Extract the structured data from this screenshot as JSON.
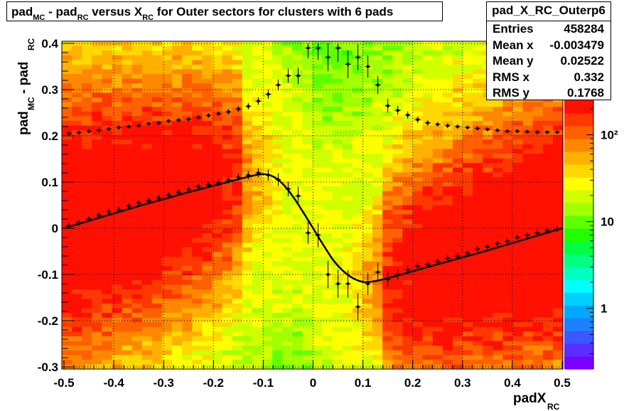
{
  "title": {
    "parts": [
      {
        "text": "pad",
        "sub": "MC"
      },
      {
        "text": " - pad",
        "sub": "RC"
      },
      {
        "text": " versus X",
        "sub": "RC"
      },
      {
        "text": " for Outer sectors for clusters with 6 pads",
        "sub": ""
      }
    ]
  },
  "stats": {
    "name": "pad_X_RC_Outerp6",
    "rows": [
      {
        "label": "Entries",
        "value": "458284"
      },
      {
        "label": "Mean x",
        "value": "-0.003479"
      },
      {
        "label": "Mean y",
        "value": "0.02522"
      },
      {
        "label": "RMS x",
        "value": "0.332"
      },
      {
        "label": "RMS y",
        "value": "0.1768"
      }
    ]
  },
  "chart_data": {
    "type": "heatmap",
    "title": "pad_MC - pad_RC versus X_RC for Outer sectors for clusters with 6 pads",
    "xlabel": "padX",
    "xlabel_sub": "RC",
    "ylabel": "pad",
    "ylabel_sub1": "MC",
    "ylabel_mid": " - pad",
    "ylabel_sub2": "RC",
    "xlim": [
      -0.5,
      0.5
    ],
    "ylim": [
      -0.3,
      0.4
    ],
    "x_ticks": [
      -0.5,
      -0.4,
      -0.3,
      -0.2,
      -0.1,
      0,
      0.1,
      0.2,
      0.3,
      0.4,
      0.5
    ],
    "x_tick_labels": [
      "-0.5",
      "-0.4",
      "-0.3",
      "-0.2",
      "-0.1",
      "0",
      "0.1",
      "0.2",
      "0.3",
      "0.4",
      "0.5"
    ],
    "y_ticks": [
      -0.3,
      -0.2,
      -0.1,
      0,
      0.1,
      0.2,
      0.3,
      0.4
    ],
    "y_tick_labels": [
      "-0.3",
      "-0.2",
      "-0.1",
      "0",
      "0.1",
      "0.2",
      "0.3",
      "0.4"
    ],
    "grid": true,
    "z_scale": "log",
    "colorbar_labels": [
      "1",
      "10",
      "10²"
    ],
    "colorbar_values": [
      1,
      10,
      100
    ],
    "colorbar_range": [
      0.2,
      250
    ],
    "palette": [
      "#7a00ff",
      "#5a2dff",
      "#3a58ff",
      "#1f80ff",
      "#00a8ff",
      "#00d0ff",
      "#00ffff",
      "#00ffc0",
      "#00ff80",
      "#00ff40",
      "#20ff00",
      "#60ff00",
      "#a0ff00",
      "#d0ff00",
      "#ffff00",
      "#ffd800",
      "#ffb000",
      "#ff8800",
      "#ff6000",
      "#ff3800",
      "#ff1000"
    ],
    "profile_mean": {
      "x": [
        -0.49,
        -0.47,
        -0.45,
        -0.43,
        -0.41,
        -0.39,
        -0.37,
        -0.35,
        -0.33,
        -0.31,
        -0.29,
        -0.27,
        -0.25,
        -0.23,
        -0.21,
        -0.19,
        -0.17,
        -0.15,
        -0.13,
        -0.11,
        -0.09,
        -0.07,
        -0.05,
        -0.03,
        -0.01,
        0.01,
        0.03,
        0.05,
        0.07,
        0.09,
        0.11,
        0.13,
        0.15,
        0.17,
        0.19,
        0.21,
        0.23,
        0.25,
        0.27,
        0.29,
        0.31,
        0.33,
        0.35,
        0.37,
        0.39,
        0.41,
        0.43,
        0.45,
        0.47,
        0.49
      ],
      "y": [
        0.005,
        0.012,
        0.02,
        0.028,
        0.036,
        0.04,
        0.048,
        0.055,
        0.06,
        0.066,
        0.072,
        0.078,
        0.084,
        0.09,
        0.094,
        0.098,
        0.104,
        0.11,
        0.115,
        0.12,
        0.115,
        0.105,
        0.085,
        0.07,
        -0.01,
        -0.015,
        -0.1,
        -0.12,
        -0.12,
        -0.17,
        -0.12,
        -0.095,
        -0.11,
        -0.1,
        -0.09,
        -0.082,
        -0.078,
        -0.072,
        -0.065,
        -0.06,
        -0.054,
        -0.045,
        -0.04,
        -0.033,
        -0.028,
        -0.02,
        -0.015,
        -0.01,
        -0.005,
        -0.002
      ],
      "yerr": [
        0.006,
        0.006,
        0.006,
        0.006,
        0.006,
        0.006,
        0.006,
        0.006,
        0.006,
        0.006,
        0.006,
        0.006,
        0.006,
        0.006,
        0.006,
        0.007,
        0.007,
        0.008,
        0.009,
        0.01,
        0.012,
        0.014,
        0.016,
        0.02,
        0.024,
        0.026,
        0.03,
        0.03,
        0.03,
        0.03,
        0.024,
        0.02,
        0.016,
        0.012,
        0.01,
        0.009,
        0.008,
        0.007,
        0.007,
        0.006,
        0.006,
        0.006,
        0.006,
        0.006,
        0.006,
        0.006,
        0.006,
        0.006,
        0.006,
        0.006
      ]
    },
    "profile_rms": {
      "x": [
        -0.49,
        -0.47,
        -0.45,
        -0.43,
        -0.41,
        -0.39,
        -0.37,
        -0.35,
        -0.33,
        -0.31,
        -0.29,
        -0.27,
        -0.25,
        -0.23,
        -0.21,
        -0.19,
        -0.17,
        -0.15,
        -0.13,
        -0.11,
        -0.09,
        -0.07,
        -0.05,
        -0.03,
        -0.01,
        0.01,
        0.03,
        0.05,
        0.07,
        0.09,
        0.11,
        0.13,
        0.15,
        0.17,
        0.19,
        0.21,
        0.23,
        0.25,
        0.27,
        0.29,
        0.31,
        0.33,
        0.35,
        0.37,
        0.39,
        0.41,
        0.43,
        0.45,
        0.47,
        0.49
      ],
      "y": [
        0.205,
        0.207,
        0.21,
        0.212,
        0.215,
        0.218,
        0.22,
        0.222,
        0.226,
        0.228,
        0.232,
        0.234,
        0.236,
        0.24,
        0.244,
        0.248,
        0.252,
        0.258,
        0.264,
        0.275,
        0.29,
        0.31,
        0.33,
        0.33,
        0.39,
        0.39,
        0.37,
        0.39,
        0.355,
        0.37,
        0.35,
        0.31,
        0.265,
        0.255,
        0.245,
        0.235,
        0.228,
        0.225,
        0.222,
        0.22,
        0.218,
        0.216,
        0.214,
        0.212,
        0.21,
        0.21,
        0.209,
        0.208,
        0.208,
        0.208
      ],
      "yerr": [
        0.004,
        0.004,
        0.004,
        0.004,
        0.004,
        0.004,
        0.004,
        0.004,
        0.004,
        0.004,
        0.004,
        0.004,
        0.004,
        0.005,
        0.005,
        0.005,
        0.006,
        0.006,
        0.007,
        0.008,
        0.01,
        0.012,
        0.015,
        0.018,
        0.022,
        0.026,
        0.03,
        0.03,
        0.03,
        0.028,
        0.024,
        0.02,
        0.015,
        0.01,
        0.008,
        0.007,
        0.006,
        0.005,
        0.005,
        0.005,
        0.004,
        0.004,
        0.004,
        0.004,
        0.004,
        0.004,
        0.004,
        0.004,
        0.004,
        0.004
      ]
    },
    "fit_curve": {
      "x": [
        -0.5,
        -0.45,
        -0.4,
        -0.35,
        -0.3,
        -0.25,
        -0.2,
        -0.15,
        -0.12,
        -0.1,
        -0.08,
        -0.06,
        -0.04,
        -0.02,
        0,
        0.02,
        0.04,
        0.06,
        0.08,
        0.1,
        0.12,
        0.15,
        0.2,
        0.25,
        0.3,
        0.35,
        0.4,
        0.45,
        0.5
      ],
      "y": [
        0.0,
        0.016,
        0.032,
        0.048,
        0.063,
        0.078,
        0.092,
        0.106,
        0.114,
        0.117,
        0.112,
        0.095,
        0.068,
        0.035,
        0.0,
        -0.035,
        -0.068,
        -0.092,
        -0.108,
        -0.116,
        -0.115,
        -0.108,
        -0.093,
        -0.078,
        -0.063,
        -0.048,
        -0.032,
        -0.016,
        0.0
      ]
    }
  }
}
